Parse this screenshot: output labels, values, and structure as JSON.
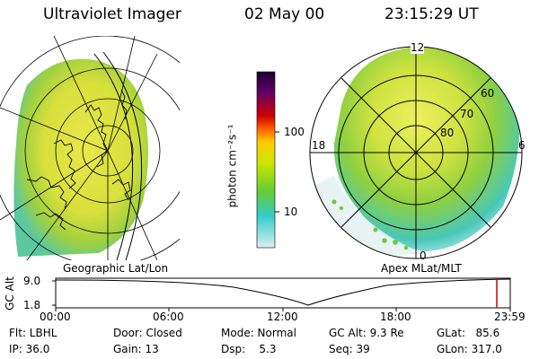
{
  "header": {
    "instrument": "Ultraviolet Imager",
    "date": "02 May 00",
    "time": "23:15:29 UT"
  },
  "left_panel": {
    "caption": "Geographic Lat/Lon"
  },
  "right_panel": {
    "caption": "Apex MLat/MLT",
    "mlt_labels": [
      "12",
      "18",
      "6",
      "0"
    ],
    "lat_labels": [
      "60",
      "70",
      "80"
    ]
  },
  "colorbar": {
    "unit_label": "photon cm⁻²s⁻¹",
    "ticks": [
      "100",
      "10"
    ],
    "colors": [
      "#1a0033",
      "#660066",
      "#cc0000",
      "#ff6600",
      "#ffcc00",
      "#c8e600",
      "#66cc33",
      "#33cccc",
      "#ddeeee"
    ]
  },
  "altitude_plot": {
    "ylabel": "GC Alt",
    "yticks": [
      "9.0",
      "1.8"
    ],
    "xticks": [
      "00:00",
      "06:00",
      "12:00",
      "18:00",
      "23:59"
    ],
    "current_time_marker_color": "#cc0000"
  },
  "info": {
    "flt": "Flt: LBHL",
    "ip": "IP: 36.0",
    "door": "Door: Closed",
    "gain": "Gain: 13",
    "mode": "Mode: Normal",
    "dsp": "Dsp:    5.3",
    "gcalt": "GC Alt: 9.3 Re",
    "seq": "Seq: 39",
    "glat": "GLat:   85.6",
    "glon": "GLon: 317.0"
  }
}
